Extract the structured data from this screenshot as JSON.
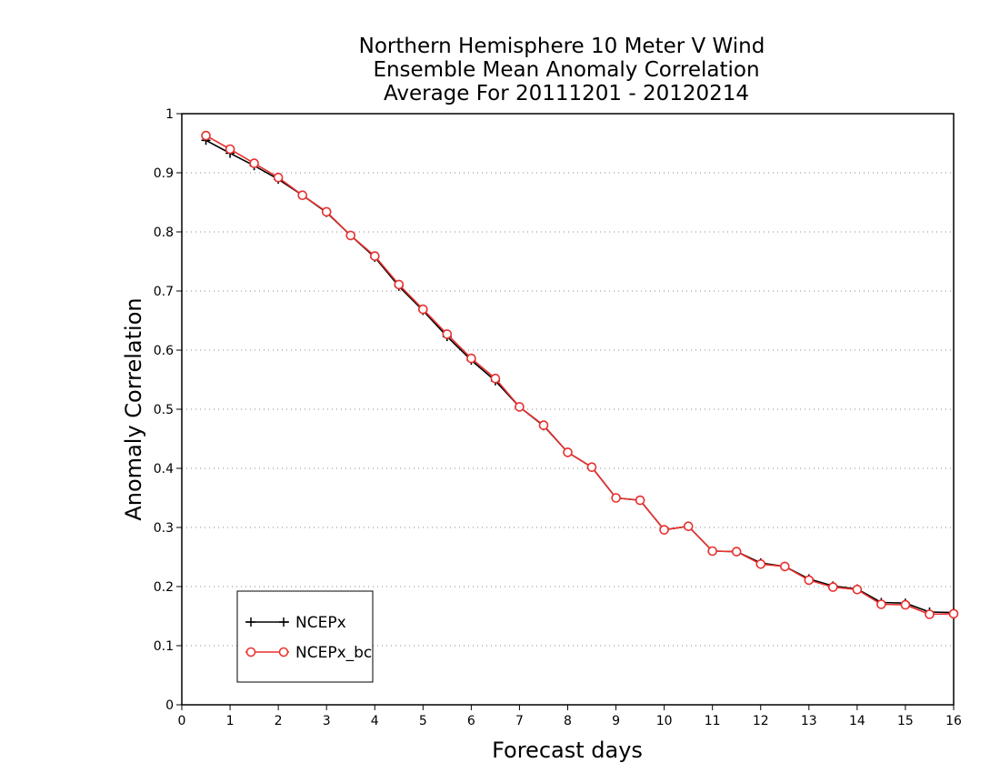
{
  "chart_data": {
    "type": "line",
    "title_lines": [
      "Northern Hemisphere 10 Meter V Wind",
      "Ensemble Mean Anomaly Correlation",
      "Average For 20111201 - 20120214"
    ],
    "xlabel": "Forecast days",
    "ylabel": "Anomaly Correlation",
    "xlim": [
      0,
      16
    ],
    "ylim": [
      0,
      1
    ],
    "x_ticks": [
      "0",
      "1",
      "2",
      "3",
      "4",
      "5",
      "6",
      "7",
      "8",
      "9",
      "10",
      "11",
      "12",
      "13",
      "14",
      "15",
      "16"
    ],
    "y_ticks": [
      "0",
      "0.1",
      "0.2",
      "0.3",
      "0.4",
      "0.5",
      "0.6",
      "0.7",
      "0.8",
      "0.9",
      "1"
    ],
    "grid": "horizontal dotted",
    "legend_position": "bottom-left",
    "x": [
      0.5,
      1,
      1.5,
      2,
      2.5,
      3,
      3.5,
      4,
      4.5,
      5,
      5.5,
      6,
      6.5,
      7,
      7.5,
      8,
      8.5,
      9,
      9.5,
      10,
      10.5,
      11,
      11.5,
      12,
      12.5,
      13,
      13.5,
      14,
      14.5,
      15,
      15.5,
      16
    ],
    "series": [
      {
        "name": "NCEPx",
        "color": "#000000",
        "marker": "plus",
        "values": [
          0.955,
          0.933,
          0.912,
          0.889,
          0.862,
          0.833,
          0.794,
          0.757,
          0.708,
          0.667,
          0.623,
          0.583,
          0.548,
          0.504,
          0.472,
          0.427,
          0.402,
          0.35,
          0.346,
          0.296,
          0.302,
          0.26,
          0.259,
          0.24,
          0.234,
          0.213,
          0.201,
          0.196,
          0.173,
          0.172,
          0.157,
          0.156
        ]
      },
      {
        "name": "NCEPx_bc",
        "color": "#e8302e",
        "marker": "circle",
        "values": [
          0.963,
          0.94,
          0.916,
          0.892,
          0.862,
          0.834,
          0.794,
          0.759,
          0.711,
          0.669,
          0.627,
          0.586,
          0.552,
          0.504,
          0.473,
          0.427,
          0.402,
          0.35,
          0.346,
          0.296,
          0.302,
          0.26,
          0.259,
          0.238,
          0.234,
          0.211,
          0.199,
          0.195,
          0.17,
          0.169,
          0.153,
          0.154
        ]
      }
    ]
  }
}
